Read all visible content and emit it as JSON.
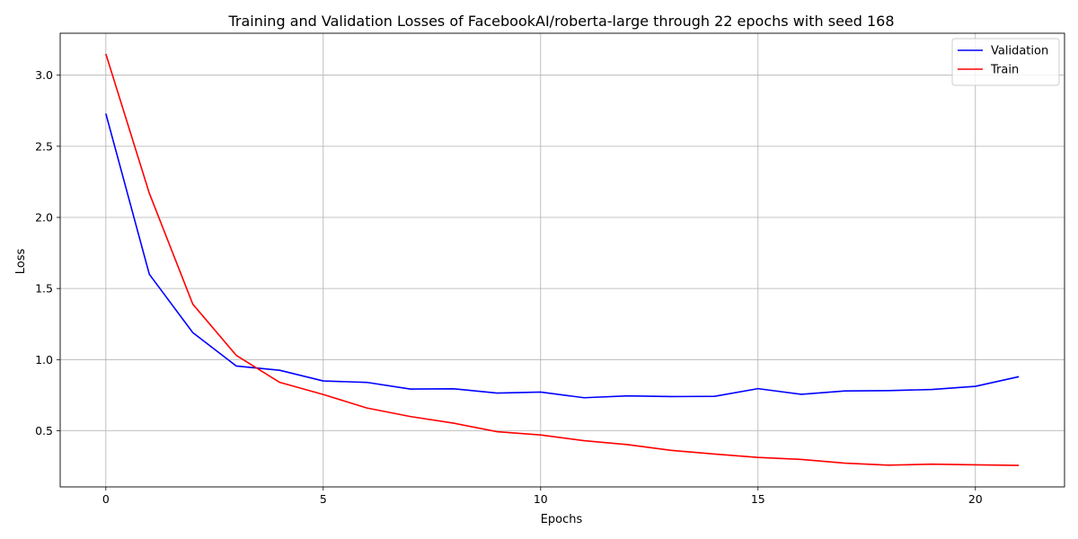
{
  "chart_data": {
    "type": "line",
    "title": "Training and Validation Losses of FacebookAI/roberta-large through 22 epochs with seed 168",
    "xlabel": "Epochs",
    "ylabel": "Loss",
    "xlim": [
      -1.05,
      22.05
    ],
    "ylim": [
      0.105,
      3.295
    ],
    "xticks": [
      0,
      5,
      10,
      15,
      20
    ],
    "yticks": [
      0.5,
      1.0,
      1.5,
      2.0,
      2.5,
      3.0
    ],
    "grid": true,
    "legend_position": "top-right",
    "x": [
      0,
      1,
      2,
      3,
      4,
      5,
      6,
      7,
      8,
      9,
      10,
      11,
      12,
      13,
      14,
      15,
      16,
      17,
      18,
      19,
      20,
      21
    ],
    "series": [
      {
        "name": "Validation",
        "color": "#0000ff",
        "values": [
          2.73,
          1.6,
          1.19,
          0.955,
          0.925,
          0.85,
          0.84,
          0.793,
          0.795,
          0.765,
          0.772,
          0.732,
          0.745,
          0.74,
          0.742,
          0.796,
          0.756,
          0.78,
          0.782,
          0.79,
          0.812,
          0.88
        ]
      },
      {
        "name": "Train",
        "color": "#ff0000",
        "values": [
          3.15,
          2.17,
          1.39,
          1.03,
          0.84,
          0.755,
          0.66,
          0.6,
          0.553,
          0.493,
          0.47,
          0.43,
          0.402,
          0.362,
          0.336,
          0.312,
          0.298,
          0.272,
          0.258,
          0.265,
          0.26,
          0.256
        ]
      }
    ]
  }
}
